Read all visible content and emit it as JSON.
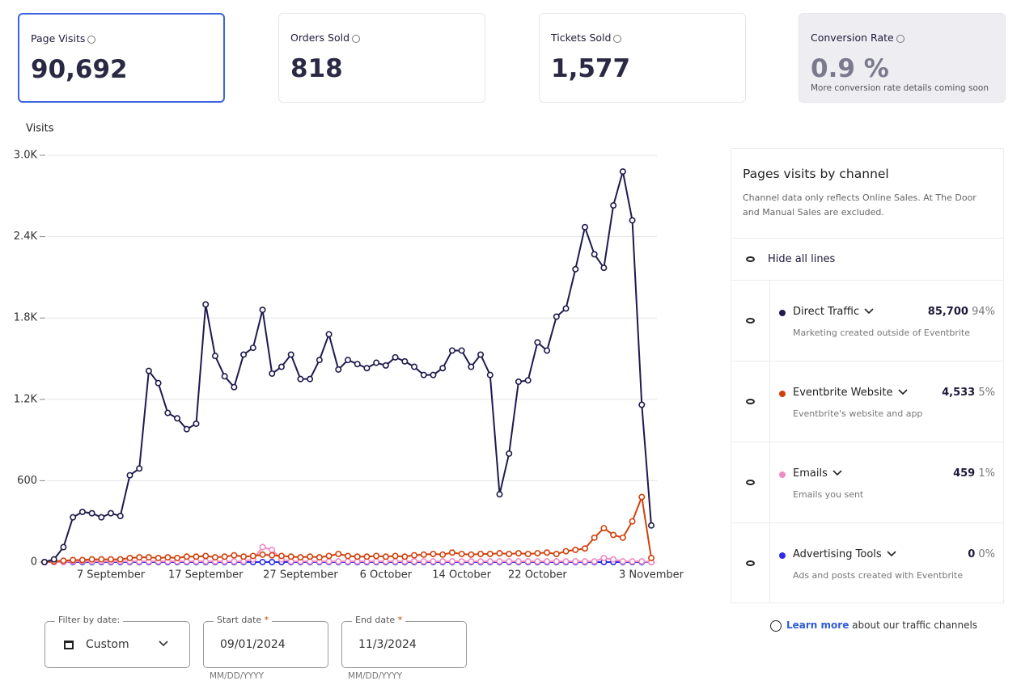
{
  "stats": [
    {
      "label": "Page Visits",
      "value": "90,692"
    },
    {
      "label": "Orders Sold",
      "value": "818"
    },
    {
      "label": "Tickets Sold",
      "value": "1,577"
    },
    {
      "label": "Conversion Rate",
      "value": "0.9 %",
      "note": "More conversion rate details coming soon"
    }
  ],
  "chart_data": {
    "type": "line",
    "y_label": "Visits",
    "categories": [
      null,
      null,
      null,
      null,
      null,
      null,
      null,
      "7 September",
      null,
      null,
      null,
      null,
      null,
      null,
      null,
      null,
      null,
      "17 September",
      null,
      null,
      null,
      null,
      null,
      null,
      null,
      null,
      null,
      "27 September",
      null,
      null,
      null,
      null,
      null,
      null,
      null,
      null,
      "6 October",
      null,
      null,
      null,
      null,
      null,
      null,
      null,
      "14 October",
      null,
      null,
      null,
      null,
      null,
      null,
      null,
      "22 October",
      null,
      null,
      null,
      null,
      null,
      null,
      null,
      null,
      null,
      null,
      null,
      "3 November"
    ],
    "series": [
      {
        "name": "Direct Traffic",
        "color": "#1e1a4d",
        "values": [
          0,
          20,
          110,
          330,
          370,
          360,
          330,
          360,
          340,
          640,
          690,
          1410,
          1320,
          1100,
          1060,
          980,
          1020,
          1900,
          1520,
          1370,
          1290,
          1530,
          1580,
          1860,
          1390,
          1440,
          1530,
          1350,
          1350,
          1490,
          1680,
          1420,
          1490,
          1460,
          1430,
          1470,
          1450,
          1510,
          1480,
          1440,
          1380,
          1380,
          1430,
          1560,
          1560,
          1440,
          1530,
          1380,
          500,
          800,
          1330,
          1340,
          1620,
          1560,
          1810,
          1870,
          2160,
          2470,
          2270,
          2170,
          2630,
          2880,
          2520,
          1160,
          270
        ]
      },
      {
        "name": "Eventbrite Website",
        "color": "#d1410c",
        "values": [
          0,
          5,
          10,
          15,
          15,
          20,
          20,
          20,
          20,
          30,
          35,
          35,
          30,
          35,
          30,
          40,
          40,
          45,
          35,
          40,
          50,
          40,
          45,
          55,
          50,
          45,
          40,
          35,
          40,
          35,
          45,
          60,
          45,
          40,
          40,
          45,
          40,
          45,
          40,
          50,
          55,
          60,
          55,
          70,
          60,
          55,
          60,
          60,
          65,
          60,
          65,
          60,
          65,
          70,
          60,
          80,
          90,
          100,
          180,
          250,
          200,
          180,
          300,
          480,
          30
        ]
      },
      {
        "name": "Emails",
        "color": "#f08bc3",
        "values": [
          0,
          0,
          0,
          5,
          5,
          5,
          5,
          5,
          5,
          5,
          5,
          5,
          5,
          5,
          5,
          5,
          5,
          5,
          5,
          5,
          5,
          5,
          20,
          110,
          90,
          20,
          5,
          5,
          5,
          5,
          5,
          5,
          5,
          5,
          5,
          5,
          5,
          5,
          5,
          5,
          5,
          5,
          5,
          5,
          5,
          5,
          5,
          5,
          5,
          5,
          5,
          5,
          5,
          5,
          5,
          5,
          5,
          5,
          5,
          30,
          20,
          5,
          5,
          5,
          0
        ]
      },
      {
        "name": "Advertising Tools",
        "color": "#2d2de6",
        "values": [
          0,
          0,
          0,
          0,
          0,
          0,
          0,
          0,
          0,
          0,
          0,
          0,
          0,
          0,
          0,
          0,
          0,
          0,
          0,
          0,
          0,
          0,
          0,
          0,
          0,
          0,
          0,
          0,
          0,
          0,
          0,
          0,
          0,
          0,
          0,
          0,
          0,
          0,
          0,
          0,
          0,
          0,
          0,
          0,
          0,
          0,
          0,
          0,
          0,
          0,
          0,
          0,
          0,
          0,
          0,
          0,
          0,
          0,
          0,
          0,
          0,
          0,
          0,
          0,
          0
        ]
      }
    ],
    "ylim": [
      0,
      3000
    ],
    "yticks": [
      0,
      600,
      {
        "value": 1200,
        "label": "1.2K"
      },
      {
        "value": 1800,
        "label": "1.8K"
      },
      {
        "value": 2400,
        "label": "2.4K"
      },
      {
        "value": 3000,
        "label": "3.0K"
      }
    ],
    "grid": true
  },
  "panel": {
    "title": "Pages visits by channel",
    "description": "Channel data only reflects Online Sales. At The Door and Manual Sales are excluded.",
    "hide": "Hide all lines",
    "channels": [
      {
        "name": "Direct Traffic",
        "count": "85,700",
        "share": "94%",
        "description": "Marketing created outside of Eventbrite"
      },
      {
        "name": "Eventbrite Website",
        "count": "4,533",
        "share": "5%",
        "description": "Eventbrite's website and app"
      },
      {
        "name": "Emails",
        "count": "459",
        "share": "1%",
        "description": "Emails you sent"
      },
      {
        "name": "Advertising Tools",
        "count": "0",
        "share": "0%",
        "description": "Ads and posts created with Eventbrite"
      }
    ]
  },
  "filters": {
    "required": "*",
    "filter": {
      "label": "Filter by date:",
      "value": "Custom"
    },
    "start": {
      "label": "Start date",
      "value": "09/01/2024",
      "hint": "MM/DD/YYYY"
    },
    "end": {
      "label": "End date",
      "value": "11/3/2024",
      "hint": "MM/DD/YYYY"
    }
  },
  "footer": {
    "link": "Learn more",
    "text": "about our traffic channels"
  }
}
